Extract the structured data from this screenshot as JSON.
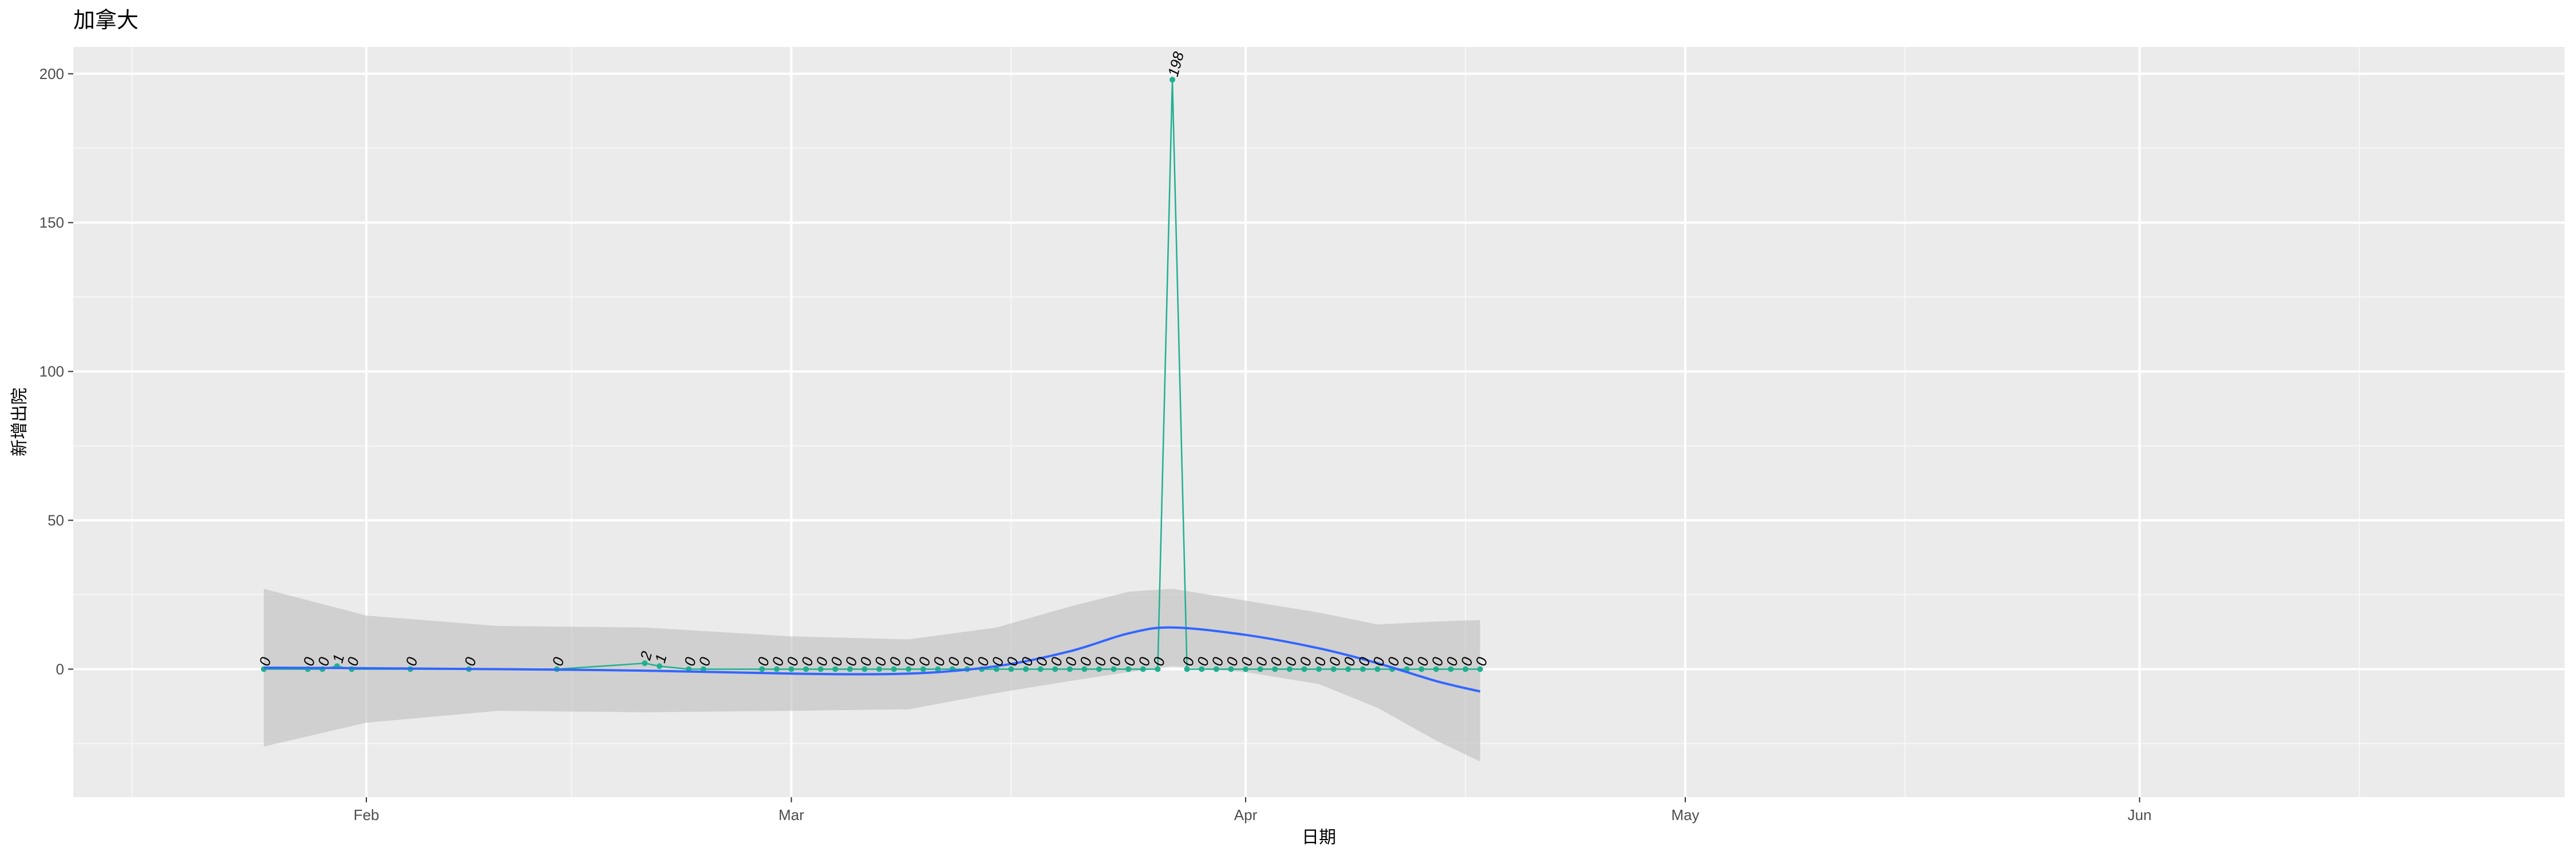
{
  "chart_data": {
    "type": "line",
    "title": "加拿大",
    "xlabel": "日期",
    "ylabel": "新增出院",
    "x_axis": {
      "type": "date",
      "range": [
        "2020-01-12",
        "2020-06-30"
      ],
      "ticks": [
        {
          "date": "2020-02-01",
          "label": "Feb"
        },
        {
          "date": "2020-03-01",
          "label": "Mar"
        },
        {
          "date": "2020-04-01",
          "label": "Apr"
        },
        {
          "date": "2020-05-01",
          "label": "May"
        },
        {
          "date": "2020-06-01",
          "label": "Jun"
        }
      ],
      "minor_ticks": [
        "2020-01-16",
        "2020-02-15",
        "2020-03-16",
        "2020-04-16",
        "2020-05-16",
        "2020-06-16"
      ]
    },
    "y_axis": {
      "range": [
        -43,
        209
      ],
      "ticks": [
        0,
        50,
        100,
        150,
        200
      ],
      "minor_ticks": [
        -25,
        25,
        75,
        125,
        175
      ]
    },
    "grid": true,
    "legend": "none",
    "series": [
      {
        "name": "",
        "color": "#20b090",
        "points": [
          [
            "2020-01-25",
            0
          ],
          [
            "2020-01-28",
            0
          ],
          [
            "2020-01-29",
            0
          ],
          [
            "2020-01-30",
            1
          ],
          [
            "2020-01-31",
            0
          ],
          [
            "2020-02-04",
            0
          ],
          [
            "2020-02-08",
            0
          ],
          [
            "2020-02-14",
            0
          ],
          [
            "2020-02-20",
            2
          ],
          [
            "2020-02-21",
            1
          ],
          [
            "2020-02-23",
            0
          ],
          [
            "2020-02-24",
            0
          ],
          [
            "2020-02-28",
            0
          ],
          [
            "2020-02-29",
            0
          ],
          [
            "2020-03-01",
            0
          ],
          [
            "2020-03-02",
            0
          ],
          [
            "2020-03-03",
            0
          ],
          [
            "2020-03-04",
            0
          ],
          [
            "2020-03-05",
            0
          ],
          [
            "2020-03-06",
            0
          ],
          [
            "2020-03-07",
            0
          ],
          [
            "2020-03-08",
            0
          ],
          [
            "2020-03-09",
            0
          ],
          [
            "2020-03-10",
            0
          ],
          [
            "2020-03-11",
            0
          ],
          [
            "2020-03-12",
            0
          ],
          [
            "2020-03-13",
            0
          ],
          [
            "2020-03-14",
            0
          ],
          [
            "2020-03-15",
            0
          ],
          [
            "2020-03-16",
            0
          ],
          [
            "2020-03-17",
            0
          ],
          [
            "2020-03-18",
            0
          ],
          [
            "2020-03-19",
            0
          ],
          [
            "2020-03-20",
            0
          ],
          [
            "2020-03-21",
            0
          ],
          [
            "2020-03-22",
            0
          ],
          [
            "2020-03-23",
            0
          ],
          [
            "2020-03-24",
            0
          ],
          [
            "2020-03-25",
            0
          ],
          [
            "2020-03-26",
            0
          ],
          [
            "2020-03-27",
            198
          ],
          [
            "2020-03-28",
            0
          ],
          [
            "2020-03-29",
            0
          ],
          [
            "2020-03-30",
            0
          ],
          [
            "2020-03-31",
            0
          ],
          [
            "2020-04-01",
            0
          ],
          [
            "2020-04-02",
            0
          ],
          [
            "2020-04-03",
            0
          ],
          [
            "2020-04-04",
            0
          ],
          [
            "2020-04-05",
            0
          ],
          [
            "2020-04-06",
            0
          ],
          [
            "2020-04-07",
            0
          ],
          [
            "2020-04-08",
            0
          ],
          [
            "2020-04-09",
            0
          ],
          [
            "2020-04-10",
            0
          ],
          [
            "2020-04-11",
            0
          ],
          [
            "2020-04-12",
            0
          ],
          [
            "2020-04-13",
            0
          ],
          [
            "2020-04-14",
            0
          ],
          [
            "2020-04-15",
            0
          ],
          [
            "2020-04-16",
            0
          ],
          [
            "2020-04-17",
            0
          ]
        ]
      }
    ],
    "smooth_fit": {
      "color": "#3366ff",
      "band_color": "#bebebe",
      "points": [
        {
          "x": "2020-01-25",
          "y": 0.5,
          "lo": -26,
          "hi": 27
        },
        {
          "x": "2020-02-01",
          "y": 0.3,
          "lo": -18,
          "hi": 18
        },
        {
          "x": "2020-02-10",
          "y": 0,
          "lo": -14,
          "hi": 14.5
        },
        {
          "x": "2020-02-20",
          "y": -0.5,
          "lo": -14.5,
          "hi": 14
        },
        {
          "x": "2020-03-01",
          "y": -1.5,
          "lo": -14,
          "hi": 11
        },
        {
          "x": "2020-03-09",
          "y": -1.5,
          "lo": -13.5,
          "hi": 10
        },
        {
          "x": "2020-03-15",
          "y": 1,
          "lo": -8,
          "hi": 14
        },
        {
          "x": "2020-03-20",
          "y": 6,
          "lo": -4,
          "hi": 21
        },
        {
          "x": "2020-03-24",
          "y": 12,
          "lo": -1,
          "hi": 26
        },
        {
          "x": "2020-03-27",
          "y": 14,
          "lo": 1,
          "hi": 27
        },
        {
          "x": "2020-04-01",
          "y": 11.5,
          "lo": -1,
          "hi": 23
        },
        {
          "x": "2020-04-06",
          "y": 7,
          "lo": -5,
          "hi": 19
        },
        {
          "x": "2020-04-10",
          "y": 2,
          "lo": -13,
          "hi": 15
        },
        {
          "x": "2020-04-14",
          "y": -4,
          "lo": -24,
          "hi": 16
        },
        {
          "x": "2020-04-17",
          "y": -7.5,
          "lo": -31,
          "hi": 16.5
        }
      ]
    }
  }
}
